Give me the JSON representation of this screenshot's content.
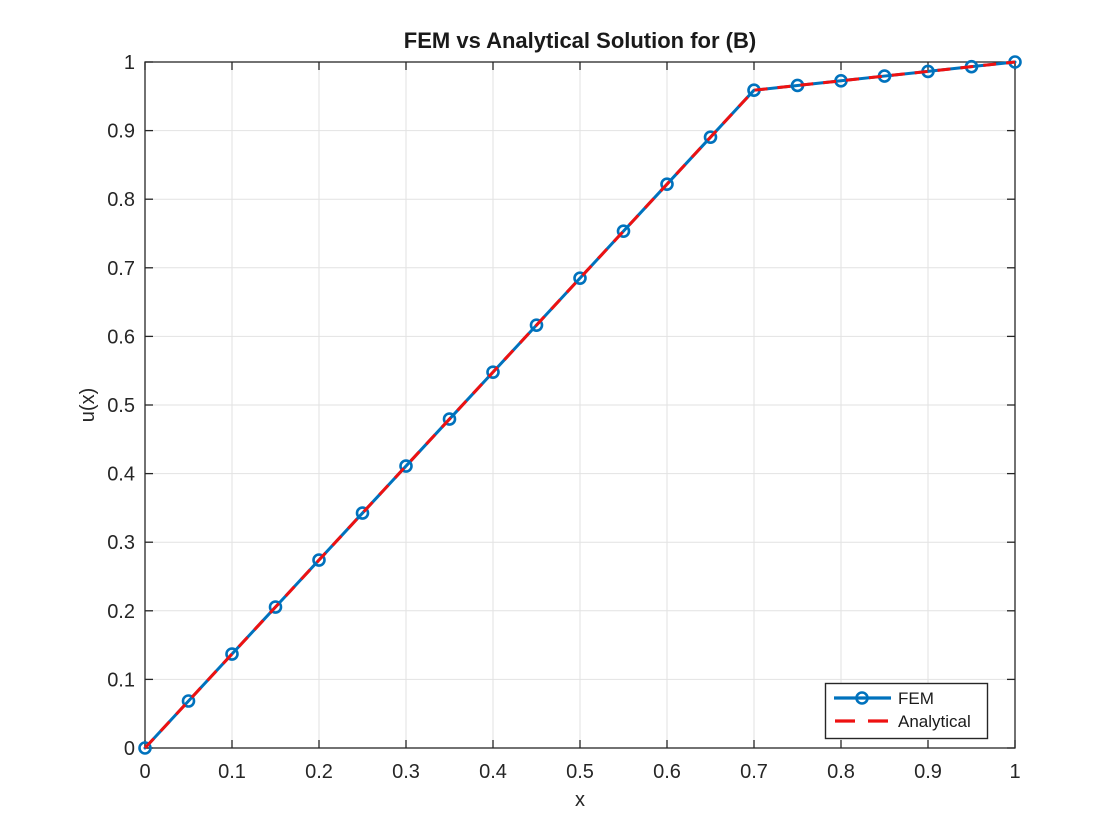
{
  "figure": {
    "background": "#ffffff"
  },
  "chart_data": {
    "type": "line",
    "title": "FEM vs Analytical Solution for (B)",
    "xlabel": "x",
    "ylabel": "u(x)",
    "xlim": [
      0,
      1
    ],
    "ylim": [
      0,
      1
    ],
    "grid": true,
    "legend_position": "southeast-inside",
    "axis_color": "#262626",
    "grid_color": "#e2e2e2",
    "x_ticks": {
      "values": [
        0,
        0.1,
        0.2,
        0.3,
        0.4,
        0.5,
        0.6,
        0.7,
        0.8,
        0.9,
        1
      ],
      "labels": [
        "0",
        "0.1",
        "0.2",
        "0.3",
        "0.4",
        "0.5",
        "0.6",
        "0.7",
        "0.8",
        "0.9",
        "1"
      ]
    },
    "y_ticks": {
      "values": [
        0,
        0.1,
        0.2,
        0.3,
        0.4,
        0.5,
        0.6,
        0.7,
        0.8,
        0.9,
        1
      ],
      "labels": [
        "0",
        "0.1",
        "0.2",
        "0.3",
        "0.4",
        "0.5",
        "0.6",
        "0.7",
        "0.8",
        "0.9",
        "1"
      ]
    },
    "x": [
      0,
      0.05,
      0.1,
      0.15,
      0.2,
      0.25,
      0.3,
      0.35,
      0.4,
      0.45,
      0.5,
      0.55,
      0.6,
      0.65,
      0.7,
      0.75,
      0.8,
      0.85,
      0.9,
      0.95,
      1
    ],
    "series": [
      {
        "name": "FEM",
        "color": "#0072bd",
        "style": "solid",
        "marker": "circle",
        "values": [
          0,
          0.0685,
          0.137,
          0.2055,
          0.274,
          0.3425,
          0.411,
          0.4795,
          0.5479,
          0.6164,
          0.6849,
          0.7534,
          0.8219,
          0.8904,
          0.9589,
          0.9658,
          0.9726,
          0.9795,
          0.9863,
          0.9932,
          1
        ]
      },
      {
        "name": "Analytical",
        "color": "#ee1111",
        "style": "dashed",
        "marker": "none",
        "values": [
          0,
          0.0685,
          0.137,
          0.2055,
          0.274,
          0.3425,
          0.411,
          0.4795,
          0.5479,
          0.6164,
          0.6849,
          0.7534,
          0.8219,
          0.8904,
          0.9589,
          0.9658,
          0.9726,
          0.9795,
          0.9863,
          0.9932,
          1
        ]
      }
    ]
  }
}
